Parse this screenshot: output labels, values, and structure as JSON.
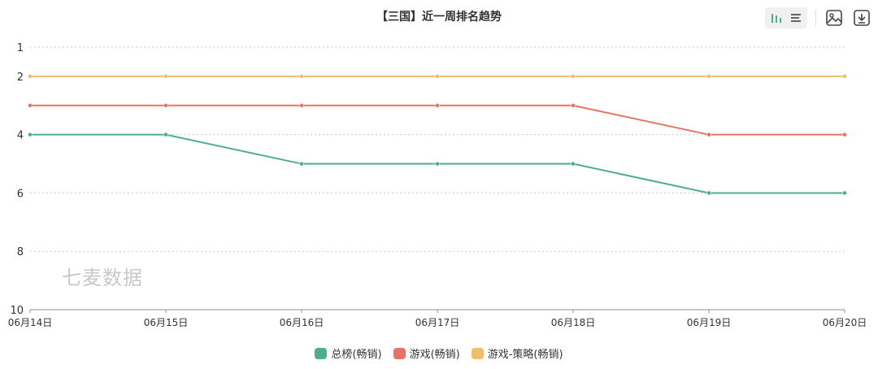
{
  "chart_data": {
    "type": "line",
    "title": "【三国】近一周排名趋势",
    "categories": [
      "06月14日",
      "06月15日",
      "06月16日",
      "06月17日",
      "06月18日",
      "06月19日",
      "06月20日"
    ],
    "series": [
      {
        "name": "总榜(畅销)",
        "color": "#4caf8a",
        "values": [
          4,
          4,
          5,
          5,
          5,
          6,
          6
        ]
      },
      {
        "name": "游戏(畅销)",
        "color": "#e57366",
        "values": [
          3,
          3,
          3,
          3,
          3,
          4,
          4
        ]
      },
      {
        "name": "游戏-策略(畅销)",
        "color": "#f2bc6b",
        "values": [
          2,
          2,
          2,
          2,
          2,
          2,
          2
        ]
      }
    ],
    "ylim": [
      1,
      10
    ],
    "y_inverted": true,
    "y_ticks": [
      1,
      2,
      4,
      6,
      8,
      10
    ],
    "grid": true,
    "legend_position": "bottom"
  },
  "watermark": "七麦数据",
  "toolbar": {
    "icons": [
      "bar-chart-icon",
      "list-icon",
      "image-icon",
      "download-icon"
    ]
  }
}
